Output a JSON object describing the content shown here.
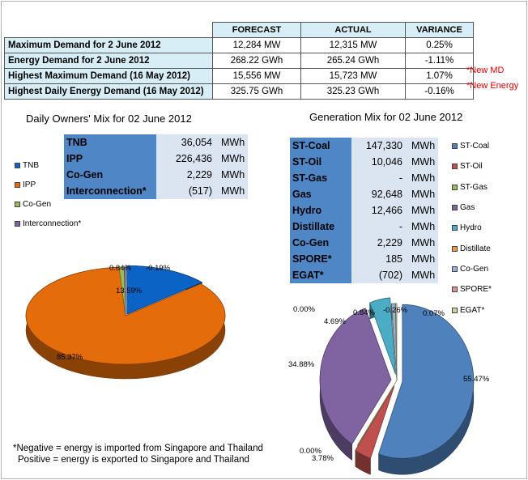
{
  "summary": {
    "headers": [
      "FORECAST",
      "ACTUAL",
      "VARIANCE"
    ],
    "rows": [
      {
        "label": "Maximum Demand for 2 June 2012",
        "forecast": "12,284 MW",
        "actual": "12,315 MW",
        "variance": "0.25%"
      },
      {
        "label": "Energy Demand for 2 June 2012",
        "forecast": "268.22 GWh",
        "actual": "265.24 GWh",
        "variance": "-1.11%"
      },
      {
        "label": "Highest Maximum Demand (16 May 2012)",
        "forecast": "15,556 MW",
        "actual": "15,723 MW",
        "variance": "1.07%"
      },
      {
        "label": "Highest Daily Energy Demand (16 May 2012)",
        "forecast": "325.75 GWh",
        "actual": "325.23 GWh",
        "variance": "-0.16%"
      }
    ],
    "notes": [
      "*New MD",
      "*New Energy"
    ]
  },
  "owners_table": [
    {
      "name": "TNB",
      "value": "36,054",
      "unit": "MWh"
    },
    {
      "name": "IPP",
      "value": "226,436",
      "unit": "MWh"
    },
    {
      "name": "Co-Gen",
      "value": "2,229",
      "unit": "MWh"
    },
    {
      "name": "Interconnection*",
      "value": "(517)",
      "unit": "MWh"
    }
  ],
  "gen_table": [
    {
      "name": "ST-Coal",
      "value": "147,330",
      "unit": "MWh"
    },
    {
      "name": "ST-Oil",
      "value": "10,046",
      "unit": "MWh"
    },
    {
      "name": "ST-Gas",
      "value": "-",
      "unit": "MWh"
    },
    {
      "name": "Gas",
      "value": "92,648",
      "unit": "MWh"
    },
    {
      "name": "Hydro",
      "value": "12,466",
      "unit": "MWh"
    },
    {
      "name": "Distillate",
      "value": "-",
      "unit": "MWh"
    },
    {
      "name": "Co-Gen",
      "value": "2,229",
      "unit": "MWh"
    },
    {
      "name": "SPORE*",
      "value": "185",
      "unit": "MWh"
    },
    {
      "name": "EGAT*",
      "value": "(702)",
      "unit": "MWh"
    }
  ],
  "footnote": [
    "*Negative = energy is imported from Singapore and Thailand",
    "Positive = energy is exported to Singapore and Thailand"
  ],
  "chart_data": [
    {
      "type": "pie",
      "title": "Daily Owners' Mix for 02 June 2012",
      "legend_position": "left",
      "slices": [
        {
          "name": "TNB",
          "value": 13.59,
          "label": "13.59%",
          "color": "#0b63c5"
        },
        {
          "name": "IPP",
          "value": 85.37,
          "label": "85.37%",
          "color": "#e46c0a"
        },
        {
          "name": "Co-Gen",
          "value": 0.84,
          "label": "0.84%",
          "color": "#9bbb59"
        },
        {
          "name": "Interconnection*",
          "value": -0.19,
          "label": "-0.19%",
          "color": "#8064a2"
        }
      ]
    },
    {
      "type": "pie",
      "title": "Generation Mix for 02 June 2012",
      "legend_position": "right",
      "slices": [
        {
          "name": "ST-Coal",
          "value": 55.47,
          "label": "55.47%",
          "color": "#4f81bd"
        },
        {
          "name": "ST-Oil",
          "value": 3.78,
          "label": "3.78%",
          "color": "#c0504d"
        },
        {
          "name": "ST-Gas",
          "value": 0.0,
          "label": "0.00%",
          "color": "#9bbb59"
        },
        {
          "name": "Gas",
          "value": 34.88,
          "label": "34.88%",
          "color": "#8064a2"
        },
        {
          "name": "Hydro",
          "value": 4.69,
          "label": "4.69%",
          "color": "#4bacc6"
        },
        {
          "name": "Distillate",
          "value": 0.0,
          "label": "0.00%",
          "color": "#f79646"
        },
        {
          "name": "Co-Gen",
          "value": 0.84,
          "label": "0.84%",
          "color": "#95b3d7"
        },
        {
          "name": "SPORE*",
          "value": 0.07,
          "label": "0.07%",
          "color": "#d99694"
        },
        {
          "name": "EGAT*",
          "value": -0.26,
          "label": "-0.26%",
          "color": "#c3d69b"
        }
      ]
    }
  ]
}
